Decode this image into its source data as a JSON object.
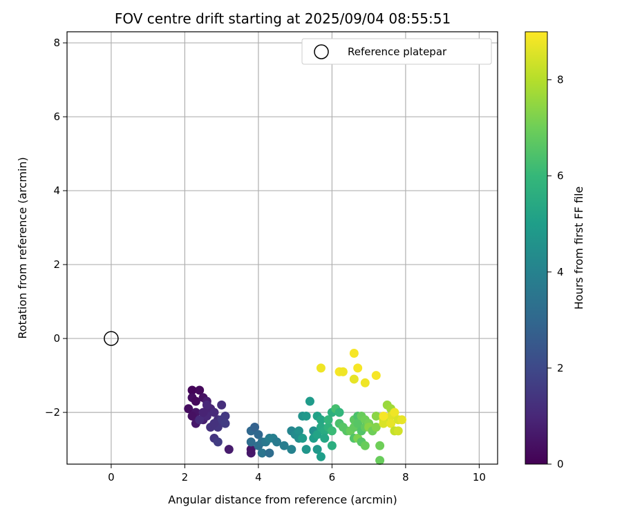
{
  "chart_data": {
    "type": "scatter",
    "title": "FOV centre drift starting at 2025/09/04 08:55:51",
    "xlabel": "Angular distance from reference (arcmin)",
    "ylabel": "Rotation from reference (arcmin)",
    "xlim": [
      -1.2,
      10.5
    ],
    "ylim": [
      -3.4,
      8.3
    ],
    "xticks": [
      "0",
      "2",
      "4",
      "6",
      "8",
      "10"
    ],
    "yticks": [
      "−2",
      "0",
      "2",
      "4",
      "6",
      "8"
    ],
    "grid": true,
    "legend": {
      "position": "top-right",
      "entries": [
        "Reference platepar"
      ]
    },
    "reference_point": {
      "x": 0,
      "y": 0
    },
    "colorbar": {
      "label": "Hours from first FF file",
      "min": 0,
      "max": 9,
      "ticks": [
        "0",
        "2",
        "4",
        "6",
        "8"
      ],
      "colormap": "viridis",
      "stops": [
        "#440154",
        "#482878",
        "#3e4989",
        "#31688e",
        "#26828e",
        "#1f9e89",
        "#35b779",
        "#6ece58",
        "#b5de2b",
        "#fde725"
      ]
    },
    "points": [
      [
        2.2,
        -1.4,
        0.1
      ],
      [
        2.4,
        -1.4,
        0.2
      ],
      [
        2.2,
        -1.6,
        0.3
      ],
      [
        2.3,
        -1.7,
        0.2
      ],
      [
        2.5,
        -1.6,
        0.4
      ],
      [
        2.1,
        -1.9,
        0.3
      ],
      [
        2.3,
        -2.0,
        0.5
      ],
      [
        2.2,
        -2.1,
        0.4
      ],
      [
        2.3,
        -2.3,
        0.6
      ],
      [
        2.5,
        -2.2,
        0.8
      ],
      [
        2.6,
        -1.7,
        0.7
      ],
      [
        2.7,
        -1.9,
        0.9
      ],
      [
        2.6,
        -2.1,
        1.0
      ],
      [
        2.8,
        -2.0,
        1.1
      ],
      [
        2.9,
        -2.2,
        1.2
      ],
      [
        2.7,
        -2.4,
        1.3
      ],
      [
        2.9,
        -2.4,
        1.4
      ],
      [
        3.0,
        -2.2,
        1.5
      ],
      [
        3.1,
        -2.1,
        1.5
      ],
      [
        3.0,
        -1.8,
        1.2
      ],
      [
        3.1,
        -2.3,
        1.6
      ],
      [
        2.8,
        -2.7,
        1.4
      ],
      [
        2.9,
        -2.8,
        1.6
      ],
      [
        3.2,
        -3.0,
        0.7
      ],
      [
        2.6,
        -1.8,
        1.0
      ],
      [
        2.4,
        -2.2,
        1.1
      ],
      [
        2.8,
        -2.3,
        1.3
      ],
      [
        2.5,
        -2.0,
        0.9
      ],
      [
        3.8,
        -3.1,
        0.6
      ],
      [
        3.8,
        -3.0,
        0.5
      ],
      [
        3.8,
        -2.5,
        3.0
      ],
      [
        3.8,
        -2.8,
        3.2
      ],
      [
        3.9,
        -2.4,
        2.8
      ],
      [
        4.0,
        -2.6,
        3.0
      ],
      [
        4.0,
        -2.9,
        3.3
      ],
      [
        4.1,
        -2.8,
        3.4
      ],
      [
        4.1,
        -3.1,
        3.5
      ],
      [
        4.2,
        -2.8,
        3.6
      ],
      [
        4.3,
        -2.7,
        3.8
      ],
      [
        4.3,
        -3.1,
        3.2
      ],
      [
        4.4,
        -2.7,
        3.9
      ],
      [
        4.5,
        -2.8,
        3.7
      ],
      [
        4.7,
        -2.9,
        3.8
      ],
      [
        4.9,
        -2.5,
        4.1
      ],
      [
        4.9,
        -3.0,
        4.0
      ],
      [
        5.0,
        -2.6,
        4.3
      ],
      [
        5.1,
        -2.5,
        4.5
      ],
      [
        5.1,
        -2.7,
        4.4
      ],
      [
        5.2,
        -2.1,
        4.6
      ],
      [
        5.3,
        -2.1,
        4.8
      ],
      [
        5.2,
        -2.7,
        4.9
      ],
      [
        5.3,
        -3.0,
        4.7
      ],
      [
        5.4,
        -1.7,
        4.9
      ],
      [
        5.5,
        -2.5,
        4.5
      ],
      [
        5.5,
        -2.7,
        5.0
      ],
      [
        5.6,
        -2.6,
        5.2
      ],
      [
        5.6,
        -3.0,
        4.8
      ],
      [
        5.7,
        -3.2,
        5.0
      ],
      [
        5.6,
        -2.1,
        5.1
      ],
      [
        5.7,
        -2.2,
        5.3
      ],
      [
        5.7,
        -2.4,
        5.4
      ],
      [
        5.8,
        -2.5,
        5.5
      ],
      [
        5.8,
        -2.7,
        5.3
      ],
      [
        5.9,
        -2.4,
        5.8
      ],
      [
        5.9,
        -2.2,
        5.9
      ],
      [
        6.0,
        -2.0,
        5.7
      ],
      [
        6.0,
        -2.5,
        6.1
      ],
      [
        6.0,
        -2.9,
        5.6
      ],
      [
        6.1,
        -1.9,
        6.3
      ],
      [
        6.2,
        -2.3,
        6.4
      ],
      [
        6.2,
        -2.0,
        5.9
      ],
      [
        6.3,
        -2.4,
        6.6
      ],
      [
        6.4,
        -2.5,
        6.6
      ],
      [
        6.5,
        -2.5,
        6.9
      ],
      [
        6.6,
        -2.2,
        6.7
      ],
      [
        6.6,
        -2.4,
        6.8
      ],
      [
        6.6,
        -2.7,
        6.5
      ],
      [
        6.7,
        -2.7,
        7.2
      ],
      [
        6.7,
        -2.1,
        6.4
      ],
      [
        6.7,
        -2.3,
        6.6
      ],
      [
        6.8,
        -2.1,
        6.9
      ],
      [
        6.8,
        -2.5,
        6.5
      ],
      [
        6.8,
        -2.8,
        6.6
      ],
      [
        6.9,
        -2.2,
        7.0
      ],
      [
        6.9,
        -2.4,
        6.8
      ],
      [
        6.9,
        -2.9,
        6.9
      ],
      [
        7.0,
        -2.3,
        7.1
      ],
      [
        7.0,
        -2.4,
        7.4
      ],
      [
        7.1,
        -2.5,
        7.0
      ],
      [
        7.2,
        -2.1,
        7.4
      ],
      [
        7.2,
        -2.4,
        7.3
      ],
      [
        7.3,
        -2.9,
        7.0
      ],
      [
        7.3,
        -3.3,
        6.9
      ],
      [
        7.4,
        -2.2,
        8.3
      ],
      [
        7.4,
        -2.3,
        8.5
      ],
      [
        7.5,
        -1.8,
        7.6
      ],
      [
        7.6,
        -1.9,
        7.7
      ],
      [
        7.6,
        -2.1,
        8.6
      ],
      [
        7.6,
        -2.3,
        8.7
      ],
      [
        7.7,
        -2.0,
        8.8
      ],
      [
        7.7,
        -2.5,
        8.2
      ],
      [
        7.8,
        -2.2,
        8.5
      ],
      [
        7.8,
        -2.5,
        8.4
      ],
      [
        7.9,
        -2.2,
        8.7
      ],
      [
        7.4,
        -2.1,
        8.9
      ],
      [
        5.7,
        -0.8,
        8.8
      ],
      [
        6.2,
        -0.9,
        8.9
      ],
      [
        6.3,
        -0.9,
        8.8
      ],
      [
        6.6,
        -0.4,
        8.9
      ],
      [
        6.7,
        -0.8,
        8.9
      ],
      [
        6.6,
        -1.1,
        8.7
      ],
      [
        6.9,
        -1.2,
        8.8
      ],
      [
        7.2,
        -1.0,
        8.9
      ]
    ]
  }
}
